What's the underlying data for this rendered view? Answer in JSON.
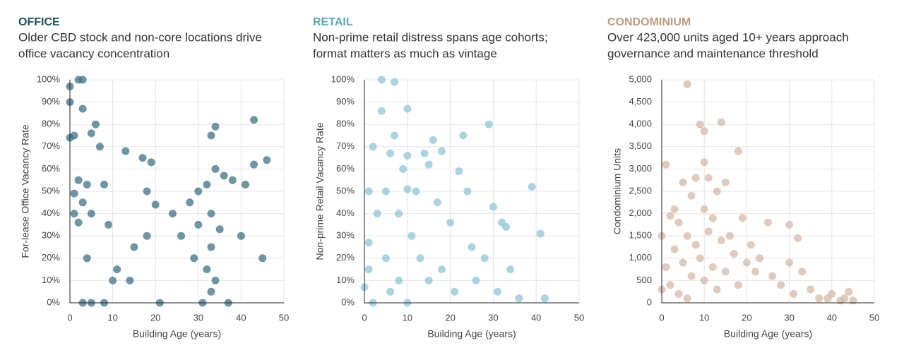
{
  "chart_data": [
    {
      "type": "scatter",
      "title": "OFFICE",
      "title_color": "#1d4e5f",
      "subtitle": [
        "Older CBD stock and non-core locations drive",
        "office vacancy concentration"
      ],
      "xlabel": "Building Age (years)",
      "ylabel": "For-lease Office Vacancy Rate",
      "color": "#3d7285",
      "xlim": [
        0,
        50
      ],
      "xticks": [
        0,
        10,
        20,
        30,
        40,
        50
      ],
      "ylim": [
        0,
        100
      ],
      "yticks": [
        {
          "value": 0,
          "label": "0%"
        },
        {
          "value": 10,
          "label": "10%"
        },
        {
          "value": 20,
          "label": "20%"
        },
        {
          "value": 30,
          "label": "30%"
        },
        {
          "value": 40,
          "label": "40%"
        },
        {
          "value": 50,
          "label": "50%"
        },
        {
          "value": 60,
          "label": "60%"
        },
        {
          "value": 70,
          "label": "70%"
        },
        {
          "value": 80,
          "label": "80%"
        },
        {
          "value": 90,
          "label": "90%"
        },
        {
          "value": 100,
          "label": "100%"
        }
      ],
      "grid": true,
      "x": [
        0,
        0,
        0,
        1,
        1,
        1,
        2,
        2,
        2,
        3,
        3,
        3,
        3,
        4,
        4,
        5,
        5,
        5,
        6,
        7,
        8,
        8,
        9,
        10,
        11,
        13,
        14,
        15,
        17,
        18,
        18,
        19,
        20,
        21,
        24,
        26,
        28,
        29,
        30,
        30,
        31,
        32,
        32,
        33,
        33,
        33,
        33,
        34,
        34,
        34,
        35,
        36,
        37,
        38,
        40,
        41,
        43,
        43,
        45,
        46
      ],
      "values": [
        97,
        90,
        74,
        49,
        40,
        75,
        100,
        55,
        36,
        100,
        87,
        45,
        0,
        53,
        20,
        76,
        40,
        0,
        80,
        70,
        53,
        0,
        35,
        10,
        15,
        68,
        10,
        25,
        65,
        30,
        50,
        63,
        44,
        0,
        40,
        30,
        45,
        20,
        50,
        35,
        0,
        53,
        15,
        75,
        40,
        25,
        5,
        79,
        60,
        10,
        33,
        57,
        0,
        55,
        30,
        53,
        62,
        82,
        20,
        64
      ]
    },
    {
      "type": "scatter",
      "title": "RETAIL",
      "title_color": "#5aa5b8",
      "subtitle": [
        "Non-prime retail distress spans age cohorts;",
        "format matters as much as vintage"
      ],
      "xlabel": "Building Age (years)",
      "ylabel": "Non-prime Retail Vacancy Rate",
      "color": "#8ec5d6",
      "xlim": [
        0,
        50
      ],
      "xticks": [
        0,
        10,
        20,
        30,
        40,
        50
      ],
      "ylim": [
        0,
        100
      ],
      "yticks": [
        {
          "value": 0,
          "label": "0%"
        },
        {
          "value": 10,
          "label": "10%"
        },
        {
          "value": 20,
          "label": "20%"
        },
        {
          "value": 30,
          "label": "30%"
        },
        {
          "value": 40,
          "label": "40%"
        },
        {
          "value": 50,
          "label": "50%"
        },
        {
          "value": 60,
          "label": "60%"
        },
        {
          "value": 70,
          "label": "70%"
        },
        {
          "value": 80,
          "label": "80%"
        },
        {
          "value": 90,
          "label": "90%"
        },
        {
          "value": 100,
          "label": "100%"
        }
      ],
      "grid": true,
      "x": [
        0,
        1,
        1,
        1,
        2,
        2,
        3,
        4,
        4,
        5,
        5,
        6,
        6,
        7,
        7,
        8,
        8,
        9,
        10,
        10,
        10,
        10,
        11,
        12,
        13,
        14,
        15,
        15,
        16,
        17,
        18,
        18,
        20,
        21,
        22,
        23,
        24,
        25,
        26,
        28,
        29,
        30,
        31,
        32,
        33,
        34,
        36,
        39,
        41,
        42
      ],
      "values": [
        7,
        50,
        27,
        15,
        70,
        0,
        40,
        86,
        100,
        50,
        20,
        67,
        5,
        75,
        99,
        40,
        10,
        60,
        87,
        51,
        66,
        0,
        30,
        50,
        20,
        67,
        62,
        10,
        73,
        45,
        68,
        15,
        36,
        5,
        59,
        75,
        50,
        25,
        10,
        20,
        80,
        43,
        5,
        36,
        34,
        15,
        2,
        52,
        31,
        2
      ]
    },
    {
      "type": "scatter",
      "title": "CONDOMINIUM",
      "title_color": "#c09a80",
      "subtitle": [
        "Over 423,000 units aged 10+ years approach",
        "governance and maintenance threshold"
      ],
      "xlabel": "Building Age (years)",
      "ylabel": "Condominium Units",
      "color": "#d4b8a5",
      "xlim": [
        0,
        50
      ],
      "xticks": [
        0,
        10,
        20,
        30,
        40,
        50
      ],
      "ylim": [
        0,
        5000
      ],
      "yticks": [
        0,
        500,
        {
          "value": 1000,
          "label": "1,000"
        },
        {
          "value": 1500,
          "label": "1,500"
        },
        {
          "value": 2000,
          "label": "2,000"
        },
        {
          "value": 2500,
          "label": "2,500"
        },
        {
          "value": 3000,
          "label": "3,000"
        },
        {
          "value": 3500,
          "label": "3,500"
        },
        {
          "value": 4000,
          "label": "4,000"
        },
        {
          "value": 4500,
          "label": "4,500"
        },
        {
          "value": 5000,
          "label": "5,000"
        }
      ],
      "grid": true,
      "x": [
        0,
        0,
        1,
        1,
        2,
        2,
        3,
        3,
        4,
        4,
        5,
        5,
        6,
        6,
        6,
        7,
        7,
        8,
        8,
        9,
        9,
        10,
        10,
        10,
        10,
        11,
        11,
        12,
        12,
        13,
        13,
        14,
        14,
        15,
        15,
        16,
        17,
        18,
        18,
        19,
        20,
        21,
        22,
        23,
        25,
        26,
        28,
        30,
        30,
        31,
        32,
        33,
        35,
        37,
        39,
        40,
        42,
        43,
        44,
        45
      ],
      "values": [
        1500,
        300,
        3100,
        800,
        1950,
        400,
        2100,
        1200,
        1800,
        200,
        2700,
        900,
        4900,
        1500,
        100,
        2400,
        600,
        2800,
        1300,
        4000,
        1000,
        3850,
        3150,
        2100,
        500,
        2800,
        1600,
        1900,
        800,
        2500,
        300,
        4050,
        1400,
        2700,
        700,
        1500,
        1100,
        3400,
        400,
        1900,
        900,
        1300,
        700,
        1000,
        1800,
        600,
        400,
        1750,
        900,
        200,
        1450,
        700,
        300,
        100,
        100,
        200,
        50,
        100,
        250,
        50
      ]
    }
  ]
}
